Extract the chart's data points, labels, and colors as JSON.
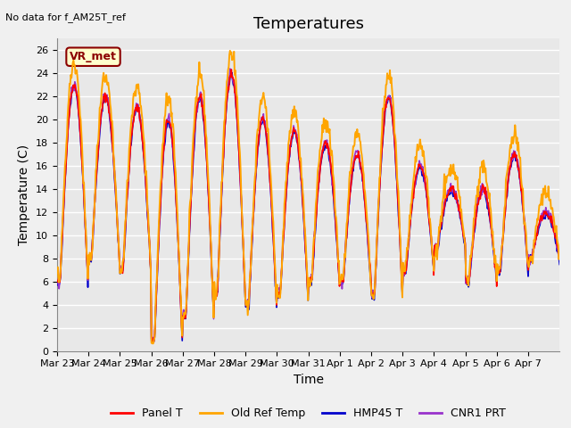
{
  "title": "Temperatures",
  "subtitle": "No data for f_AM25T_ref",
  "ylabel": "Temperature (C)",
  "xlabel": "Time",
  "annotation": "VR_met",
  "x_tick_labels": [
    "Mar 23",
    "Mar 24",
    "Mar 25",
    "Mar 26",
    "Mar 27",
    "Mar 28",
    "Mar 29",
    "Mar 30",
    "Mar 31",
    "Apr 1",
    "Apr 2",
    "Apr 3",
    "Apr 4",
    "Apr 5",
    "Apr 6",
    "Apr 7"
  ],
  "ylim": [
    0,
    27
  ],
  "yticks": [
    0,
    2,
    4,
    6,
    8,
    10,
    12,
    14,
    16,
    18,
    20,
    22,
    24,
    26
  ],
  "series": {
    "Panel T": {
      "color": "#ff0000",
      "lw": 1.2
    },
    "Old Ref Temp": {
      "color": "#ffa500",
      "lw": 1.4
    },
    "HMP45 T": {
      "color": "#0000cc",
      "lw": 1.2
    },
    "CNR1 PRT": {
      "color": "#9933cc",
      "lw": 1.2
    }
  },
  "bg_color": "#e8e8e8",
  "grid_color": "#ffffff",
  "title_fontsize": 13,
  "label_fontsize": 10,
  "tick_fontsize": 8,
  "day_peaks": [
    23,
    22,
    21,
    20,
    22,
    24,
    20,
    19,
    18,
    17,
    22,
    16,
    14,
    14,
    17,
    12
  ],
  "day_mins": [
    6,
    8,
    7,
    1,
    3,
    5,
    4,
    5,
    6,
    6,
    5,
    7,
    9,
    6,
    7,
    8
  ]
}
